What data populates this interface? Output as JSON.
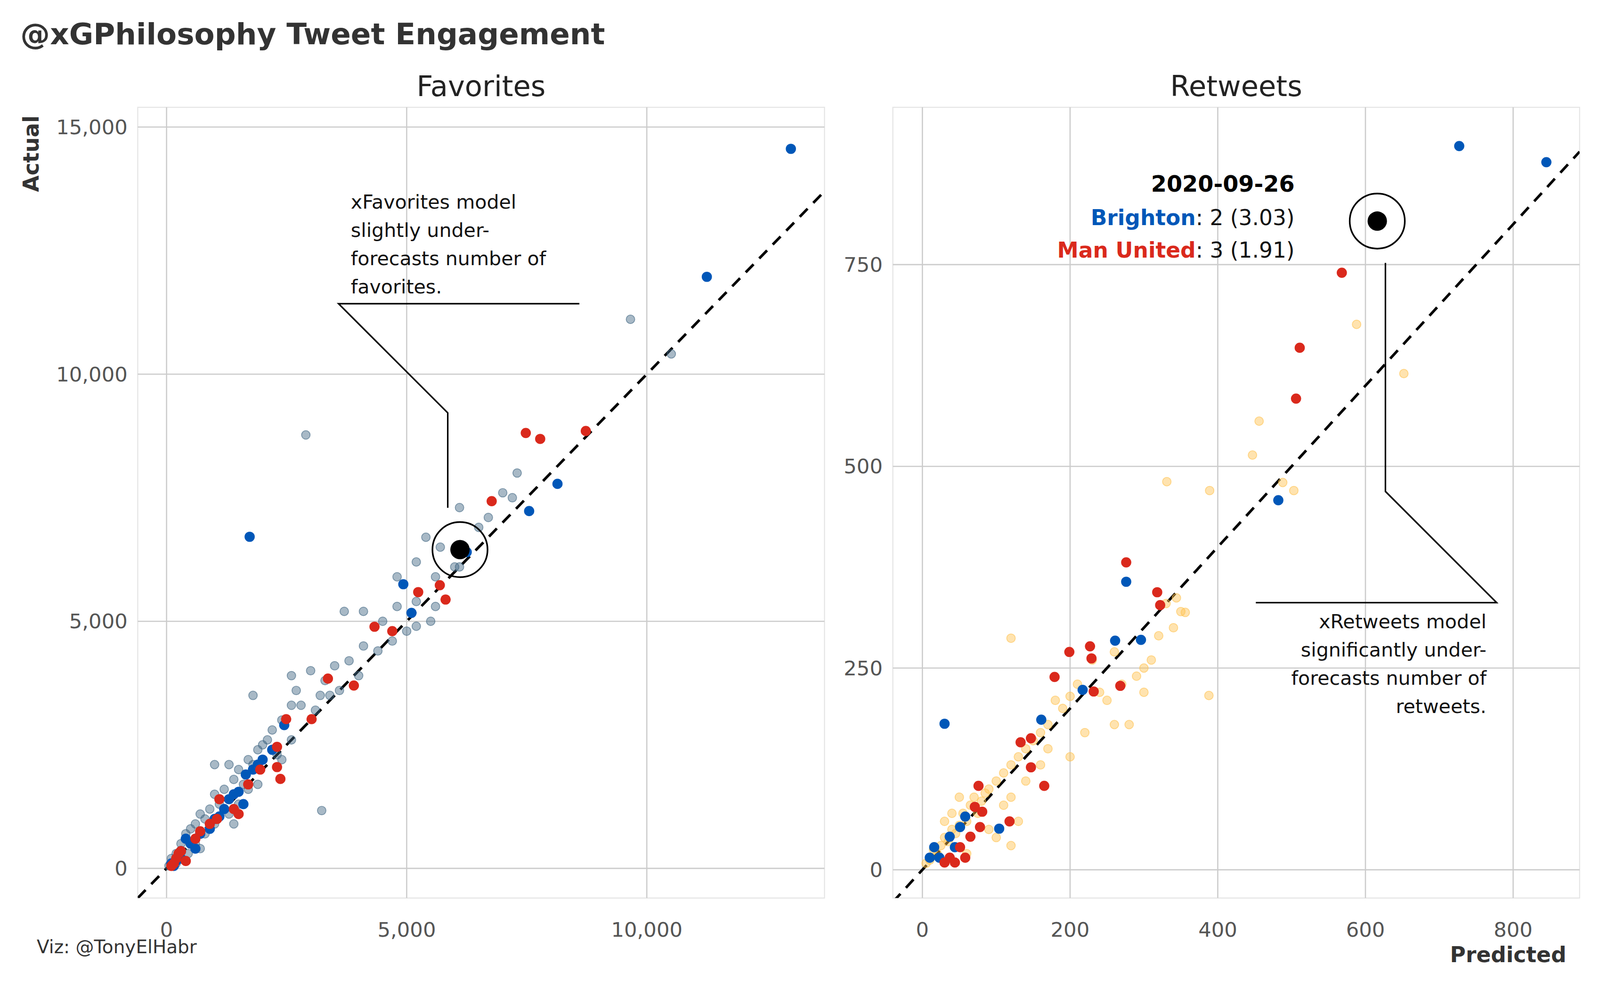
{
  "title": "@xGPhilosophy Tweet Engagement",
  "caption": "Viz: @TonyElHabr",
  "chart_data": [
    {
      "type": "scatter",
      "title": "Favorites",
      "y_label": "Actual",
      "grid": true,
      "xlim": [
        -600,
        13700
      ],
      "ylim": [
        -600,
        15400
      ],
      "xticks": [
        0,
        {
          "value": 5000,
          "label": "5,000"
        },
        {
          "value": 10000,
          "label": "10,000"
        }
      ],
      "yticks": [
        0,
        {
          "value": 5000,
          "label": "5,000"
        },
        {
          "value": 10000,
          "label": "10,000"
        },
        {
          "value": 15000,
          "label": "15,000"
        }
      ],
      "series": [
        {
          "color": "#3d6480",
          "marker": "faint",
          "x": [
            9660,
            10510,
            2900,
            3230,
            6100,
            5700,
            5400,
            5200,
            6000,
            5600,
            5200,
            4800,
            4500,
            4100,
            3700,
            5500,
            5200,
            4400,
            4100,
            3800,
            3500,
            3300,
            3200,
            3000,
            2700,
            2600,
            2400,
            2800,
            2200,
            2100,
            2000,
            2300,
            1900,
            1800,
            1700,
            1500,
            1300,
            1600,
            1400,
            1200,
            1000,
            1100,
            900,
            800,
            700,
            600,
            500,
            400,
            300,
            200,
            100,
            600,
            800,
            1000,
            1300,
            1500,
            1700,
            1900,
            2400,
            2600,
            3100,
            3400,
            3600,
            4000,
            4700,
            5000,
            5600,
            6500,
            6700,
            7200,
            7000,
            1800,
            2600,
            1000,
            1400,
            700,
            200,
            50,
            450,
            4800,
            7300,
            6100
          ],
          "values": [
            11110,
            10410,
            8770,
            1170,
            7300,
            6500,
            6700,
            6200,
            6100,
            5900,
            5400,
            5300,
            5000,
            5200,
            5200,
            5000,
            4900,
            4400,
            4500,
            4200,
            4100,
            3800,
            3500,
            4000,
            3600,
            3300,
            3000,
            3300,
            2800,
            2600,
            2500,
            2300,
            2400,
            2100,
            2200,
            2000,
            2100,
            1700,
            1800,
            1600,
            1500,
            1300,
            1200,
            1000,
            1100,
            900,
            800,
            700,
            500,
            300,
            200,
            500,
            700,
            900,
            1100,
            1300,
            1600,
            1700,
            2200,
            2600,
            3200,
            3500,
            3600,
            3900,
            4600,
            4800,
            5300,
            6900,
            7100,
            7500,
            7600,
            3500,
            3900,
            2100,
            900,
            400,
            100,
            50,
            300,
            5900,
            8000,
            6100
          ]
        },
        {
          "color": "#0057b8",
          "marker": "circle",
          "x": [
            13000,
            11250,
            1730,
            8140,
            7550,
            4930,
            5100,
            6250,
            2000,
            1900,
            1500,
            1400,
            2450,
            1650,
            1200,
            1000,
            700,
            500,
            300,
            200,
            100,
            400,
            1800,
            1600,
            2200,
            900,
            600,
            1300,
            300,
            1100,
            150
          ],
          "values": [
            14560,
            11970,
            6710,
            7780,
            7230,
            5750,
            5170,
            6400,
            2200,
            2100,
            1550,
            1500,
            2900,
            1900,
            1200,
            1000,
            700,
            500,
            350,
            150,
            100,
            600,
            2000,
            1300,
            2400,
            800,
            400,
            1400,
            200,
            1050,
            50
          ]
        },
        {
          "color": "#da291c",
          "marker": "circle",
          "x": [
            8730,
            7480,
            7780,
            6770,
            5690,
            5240,
            5810,
            4330,
            4700,
            3360,
            3020,
            2490,
            2300,
            2370,
            3900,
            1950,
            2300,
            1700,
            1100,
            1500,
            900,
            700,
            300,
            200,
            150,
            100,
            400,
            250,
            1400,
            1050,
            600
          ],
          "values": [
            8850,
            8810,
            8690,
            7430,
            5730,
            5590,
            5440,
            4890,
            4800,
            3840,
            3020,
            3020,
            2460,
            1810,
            3700,
            2000,
            2050,
            1700,
            1400,
            1100,
            900,
            750,
            350,
            200,
            100,
            50,
            150,
            300,
            1200,
            1000,
            600
          ]
        },
        {
          "color": "#000000",
          "marker": "ringed",
          "x": [
            6110
          ],
          "values": [
            6450
          ]
        }
      ],
      "annotation": {
        "lines": [
          "xFavorites model",
          "slightly under-",
          "forecasts number of",
          "favorites."
        ]
      }
    },
    {
      "type": "scatter",
      "title": "Retweets",
      "x_label": "Predicted",
      "grid": true,
      "xlim": [
        -40,
        890
      ],
      "ylim": [
        -35,
        945
      ],
      "xticks": [
        0,
        200,
        400,
        600,
        800
      ],
      "yticks": [
        0,
        250,
        500,
        750
      ],
      "series": [
        {
          "color": "#ffc24d",
          "marker": "faint",
          "x": [
            588,
            652,
            456,
            447,
            331,
            389,
            488,
            503,
            344,
            388,
            120,
            356,
            300,
            290,
            310,
            330,
            340,
            260,
            250,
            240,
            200,
            190,
            180,
            170,
            160,
            150,
            140,
            130,
            120,
            110,
            100,
            90,
            85,
            80,
            75,
            70,
            65,
            60,
            55,
            50,
            45,
            40,
            35,
            30,
            25,
            20,
            15,
            10,
            5,
            120,
            130,
            110,
            100,
            140,
            160,
            200,
            220,
            270,
            280,
            230,
            210,
            120,
            90,
            60,
            50,
            40,
            30,
            170,
            300,
            320,
            350,
            260
          ],
          "values": [
            676,
            615,
            556,
            514,
            481,
            470,
            480,
            470,
            337,
            216,
            287,
            319,
            250,
            240,
            260,
            330,
            300,
            270,
            210,
            220,
            215,
            200,
            210,
            180,
            170,
            160,
            150,
            140,
            130,
            120,
            110,
            100,
            95,
            85,
            70,
            90,
            80,
            60,
            70,
            55,
            45,
            50,
            35,
            40,
            30,
            20,
            25,
            12,
            8,
            90,
            60,
            80,
            40,
            110,
            130,
            140,
            170,
            230,
            180,
            260,
            230,
            30,
            50,
            20,
            90,
            70,
            60,
            150,
            220,
            290,
            320,
            180
          ]
        },
        {
          "color": "#0057b8",
          "marker": "circle",
          "x": [
            727,
            845,
            482,
            276,
            261,
            217,
            161,
            30,
            104,
            16,
            10,
            23,
            37,
            51,
            58,
            44,
            296
          ],
          "values": [
            897,
            877,
            458,
            357,
            284,
            223,
            186,
            181,
            51,
            28,
            15,
            15,
            41,
            53,
            66,
            28,
            285
          ]
        },
        {
          "color": "#da291c",
          "marker": "circle",
          "x": [
            568,
            511,
            506,
            318,
            322,
            276,
            199,
            227,
            229,
            179,
            268,
            232,
            147,
            133,
            165,
            147,
            118,
            76,
            71,
            37,
            51,
            30,
            44,
            65,
            58,
            78,
            81
          ],
          "values": [
            740,
            647,
            584,
            344,
            328,
            381,
            270,
            277,
            262,
            239,
            228,
            221,
            163,
            158,
            104,
            127,
            60,
            104,
            78,
            15,
            28,
            9,
            9,
            41,
            15,
            53,
            72
          ]
        },
        {
          "color": "#000000",
          "marker": "ringed",
          "x": [
            616
          ],
          "values": [
            804
          ]
        }
      ],
      "annotation": {
        "lines": [
          "xRetweets model",
          "significantly under-",
          "forecasts number of",
          "retweets."
        ],
        "date": "2020-09-26",
        "teams": [
          {
            "name": "Brighton",
            "color": "#0057b8",
            "text": ": 2 (3.03)"
          },
          {
            "name": "Man United",
            "color": "#da291c",
            "text": ": 3 (1.91)"
          }
        ]
      }
    }
  ]
}
